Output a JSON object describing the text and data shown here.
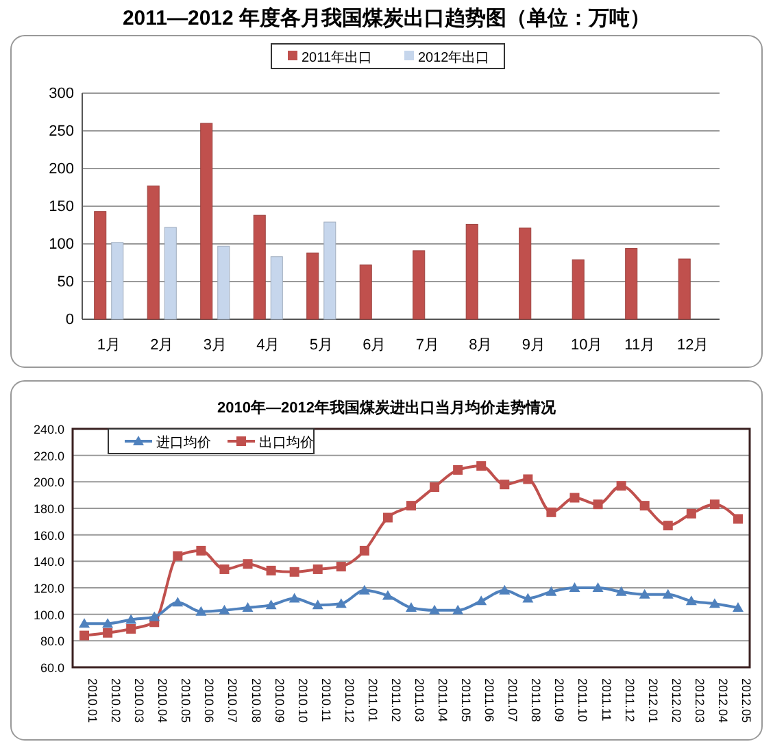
{
  "chart_data": [
    {
      "type": "bar",
      "title": "2011—2012 年度各月我国煤炭出口趋势图（单位：万吨）",
      "categories": [
        "1月",
        "2月",
        "3月",
        "4月",
        "5月",
        "6月",
        "7月",
        "8月",
        "9月",
        "10月",
        "11月",
        "12月"
      ],
      "series": [
        {
          "name": "2011年出口",
          "color": "#c0504d",
          "values": [
            143,
            177,
            260,
            138,
            88,
            72,
            91,
            126,
            121,
            79,
            94,
            80
          ]
        },
        {
          "name": "2012年出口",
          "color": "#c6d6ec",
          "values": [
            102,
            122,
            97,
            83,
            129,
            null,
            null,
            null,
            null,
            null,
            null,
            null
          ]
        }
      ],
      "ylim": [
        0,
        300
      ],
      "yticks": [
        0,
        50,
        100,
        150,
        200,
        250,
        300
      ],
      "grid": "y",
      "legend": "top"
    },
    {
      "type": "line",
      "title": "2010年—2012年我国煤炭进出口当月均价走势情况",
      "categories": [
        "2010.01",
        "2010.02",
        "2010.03",
        "2010.04",
        "2010.05",
        "2010.06",
        "2010.07",
        "2010.08",
        "2010.09",
        "2010.10",
        "2010.11",
        "2010.12",
        "2011.01",
        "2011.02",
        "2011.03",
        "2011.04",
        "2011.05",
        "2011.06",
        "2011.07",
        "2011.08",
        "2011.09",
        "2011.10",
        "2011.11",
        "2011.12",
        "2012.01",
        "2012.02",
        "2012.03",
        "2012.04",
        "2012.05"
      ],
      "series": [
        {
          "name": "进口均价",
          "color": "#4f81bd",
          "marker": "triangle",
          "values": [
            93,
            93,
            96,
            98,
            109,
            102,
            103,
            105,
            107,
            112,
            107,
            108,
            118,
            114,
            105,
            103,
            103,
            110,
            118,
            112,
            117,
            120,
            120,
            117,
            115,
            115,
            110,
            108,
            105
          ]
        },
        {
          "name": "出口均价",
          "color": "#c0504d",
          "marker": "square",
          "values": [
            84,
            86,
            89,
            94,
            144,
            148,
            134,
            138,
            133,
            132,
            134,
            136,
            148,
            173,
            182,
            196,
            209,
            212,
            198,
            202,
            177,
            188,
            183,
            197,
            182,
            167,
            176,
            183,
            172
          ]
        }
      ],
      "ylim": [
        60,
        240
      ],
      "yticks": [
        {
          "value": 60,
          "label": "60.0"
        },
        {
          "value": 80,
          "label": "80.0"
        },
        {
          "value": 100,
          "label": "100.0"
        },
        {
          "value": 120,
          "label": "120.0"
        },
        {
          "value": 140,
          "label": "140.0"
        },
        {
          "value": 160,
          "label": "160.0"
        },
        {
          "value": 180,
          "label": "180.0"
        },
        {
          "value": 200,
          "label": "200.0"
        },
        {
          "value": 220,
          "label": "220.0"
        },
        {
          "value": 240,
          "label": "240.0"
        }
      ],
      "grid": "y",
      "legend": "top left"
    }
  ]
}
